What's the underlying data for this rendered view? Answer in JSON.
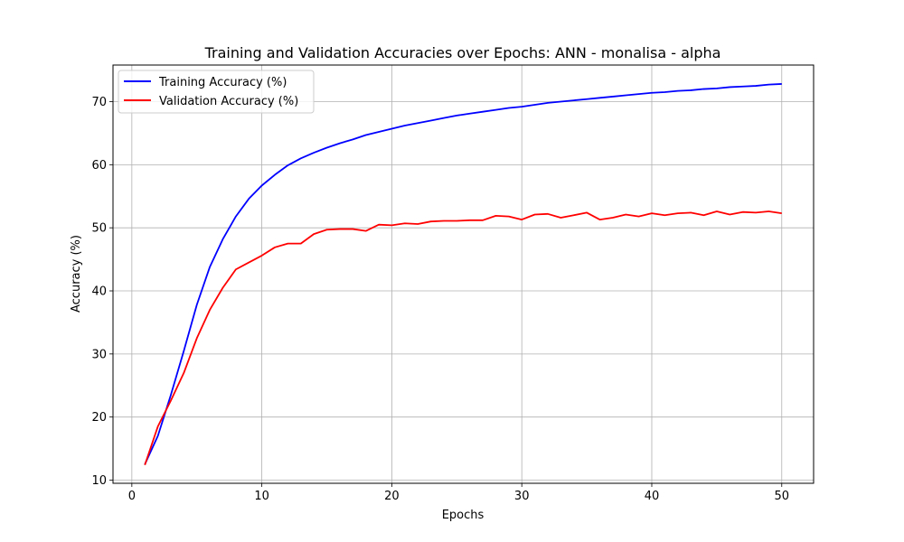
{
  "chart_data": {
    "type": "line",
    "title": "Training and Validation Accuracies over Epochs: ANN - monalisa - alpha",
    "xlabel": "Epochs",
    "ylabel": "Accuracy (%)",
    "xlim": [
      -1.45,
      52.45
    ],
    "ylim": [
      9.5,
      75.8
    ],
    "xticks": [
      0,
      10,
      20,
      30,
      40,
      50
    ],
    "yticks": [
      10,
      20,
      30,
      40,
      50,
      60,
      70
    ],
    "grid": true,
    "legend_position": "top-left",
    "x": [
      1,
      2,
      3,
      4,
      5,
      6,
      7,
      8,
      9,
      10,
      11,
      12,
      13,
      14,
      15,
      16,
      17,
      18,
      19,
      20,
      21,
      22,
      23,
      24,
      25,
      26,
      27,
      28,
      29,
      30,
      31,
      32,
      33,
      34,
      35,
      36,
      37,
      38,
      39,
      40,
      41,
      42,
      43,
      44,
      45,
      46,
      47,
      48,
      49,
      50
    ],
    "series": [
      {
        "name": "Training Accuracy (%)",
        "color": "#0000ff",
        "values": [
          12.5,
          17.0,
          23.5,
          30.5,
          37.8,
          43.8,
          48.2,
          51.8,
          54.6,
          56.7,
          58.4,
          59.9,
          61.0,
          61.9,
          62.7,
          63.4,
          64.0,
          64.7,
          65.2,
          65.7,
          66.2,
          66.6,
          67.0,
          67.4,
          67.8,
          68.1,
          68.4,
          68.7,
          69.0,
          69.2,
          69.5,
          69.8,
          70.0,
          70.2,
          70.4,
          70.6,
          70.8,
          71.0,
          71.2,
          71.4,
          71.5,
          71.7,
          71.8,
          72.0,
          72.1,
          72.3,
          72.4,
          72.5,
          72.7,
          72.8
        ]
      },
      {
        "name": "Validation Accuracy (%)",
        "color": "#ff0000",
        "values": [
          12.4,
          18.5,
          22.6,
          27.0,
          32.5,
          37.0,
          40.5,
          43.4,
          44.5,
          45.6,
          46.9,
          47.5,
          47.5,
          49.0,
          49.7,
          49.8,
          49.8,
          49.5,
          50.5,
          50.4,
          50.7,
          50.6,
          51.0,
          51.1,
          51.1,
          51.2,
          51.2,
          51.9,
          51.8,
          51.3,
          52.1,
          52.2,
          51.6,
          52.0,
          52.4,
          51.3,
          51.6,
          52.1,
          51.8,
          52.3,
          52.0,
          52.3,
          52.4,
          52.0,
          52.6,
          52.1,
          52.5,
          52.4,
          52.6,
          52.3
        ]
      }
    ]
  }
}
